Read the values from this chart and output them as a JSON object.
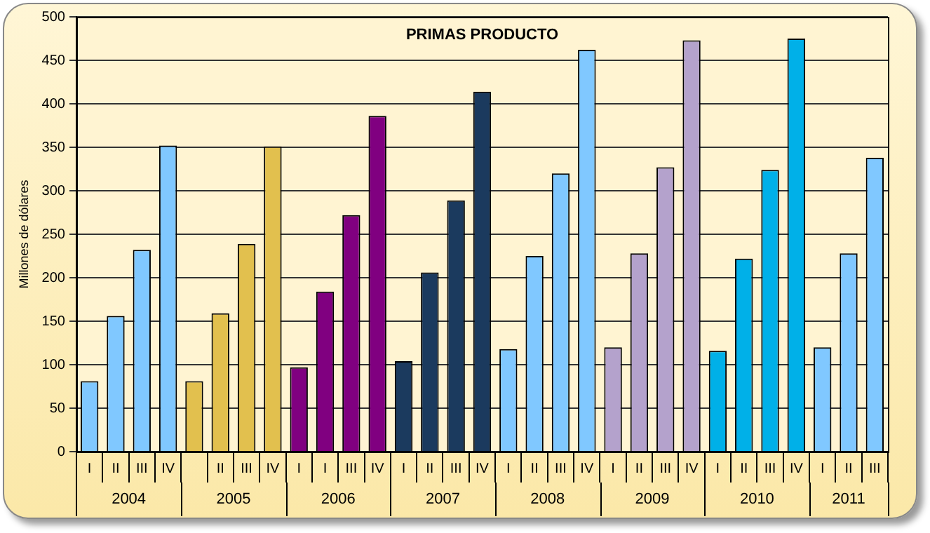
{
  "chart_data": {
    "type": "bar",
    "title": "PRIMAS PRODUCTO",
    "ylabel": "Millones de dólares",
    "categories": [
      "I",
      "II",
      "III",
      "IV",
      null,
      "II",
      "III",
      "IV",
      "I",
      "I",
      "III",
      "IV",
      "I",
      "II",
      "III",
      "IV",
      "I",
      "II",
      "III",
      "IV",
      "I",
      "II",
      "III",
      "IV",
      "I",
      "II",
      "III",
      "IV",
      "I",
      "II",
      "III"
    ],
    "series": [
      {
        "name": "2004",
        "color": "#80c8ff",
        "values": [
          81,
          156,
          232,
          352,
          null,
          null,
          null,
          null,
          null,
          null,
          null,
          null,
          null,
          null,
          null,
          null,
          null,
          null,
          null,
          null,
          null,
          null,
          null,
          null,
          null,
          null,
          null,
          null,
          null,
          null,
          null
        ]
      },
      {
        "name": "2005",
        "color": "#e2c04e",
        "values": [
          null,
          null,
          null,
          null,
          81,
          159,
          239,
          351,
          null,
          null,
          null,
          null,
          null,
          null,
          null,
          null,
          null,
          null,
          null,
          null,
          null,
          null,
          null,
          null,
          null,
          null,
          null,
          null,
          null,
          null,
          null
        ]
      },
      {
        "name": "2006",
        "color": "#800080",
        "values": [
          null,
          null,
          null,
          null,
          null,
          null,
          null,
          null,
          97,
          184,
          272,
          386,
          null,
          null,
          null,
          null,
          null,
          null,
          null,
          null,
          null,
          null,
          null,
          null,
          null,
          null,
          null,
          null,
          null,
          null,
          null
        ]
      },
      {
        "name": "2007",
        "color": "#1b3a5e",
        "values": [
          null,
          null,
          null,
          null,
          null,
          null,
          null,
          null,
          null,
          null,
          null,
          null,
          104,
          206,
          289,
          414,
          null,
          null,
          null,
          null,
          null,
          null,
          null,
          null,
          null,
          null,
          null,
          null,
          null,
          null,
          null
        ]
      },
      {
        "name": "2008",
        "color": "#80c8ff",
        "values": [
          null,
          null,
          null,
          null,
          null,
          null,
          null,
          null,
          null,
          null,
          null,
          null,
          null,
          null,
          null,
          null,
          118,
          225,
          320,
          462,
          null,
          null,
          null,
          null,
          null,
          null,
          null,
          null,
          null,
          null,
          null
        ]
      },
      {
        "name": "2009",
        "color": "#b4a2cc",
        "values": [
          null,
          null,
          null,
          null,
          null,
          null,
          null,
          null,
          null,
          null,
          null,
          null,
          null,
          null,
          null,
          null,
          null,
          null,
          null,
          null,
          120,
          228,
          327,
          473,
          null,
          null,
          null,
          null,
          null,
          null,
          null
        ]
      },
      {
        "name": "2010",
        "color": "#00b0e8",
        "values": [
          null,
          null,
          null,
          null,
          null,
          null,
          null,
          null,
          null,
          null,
          null,
          null,
          null,
          null,
          null,
          null,
          null,
          null,
          null,
          null,
          null,
          null,
          null,
          null,
          116,
          222,
          324,
          475,
          null,
          null,
          null
        ]
      },
      {
        "name": "2011",
        "color": "#80c8ff",
        "values": [
          null,
          null,
          null,
          null,
          null,
          null,
          null,
          null,
          null,
          null,
          null,
          null,
          null,
          null,
          null,
          null,
          null,
          null,
          null,
          null,
          null,
          null,
          null,
          null,
          null,
          null,
          null,
          null,
          120,
          228,
          338
        ]
      }
    ],
    "ylim": [
      0,
      500
    ],
    "yticks": [
      0,
      50,
      100,
      150,
      200,
      250,
      300,
      350,
      400,
      450,
      500
    ],
    "grid": "y",
    "legend": false
  }
}
